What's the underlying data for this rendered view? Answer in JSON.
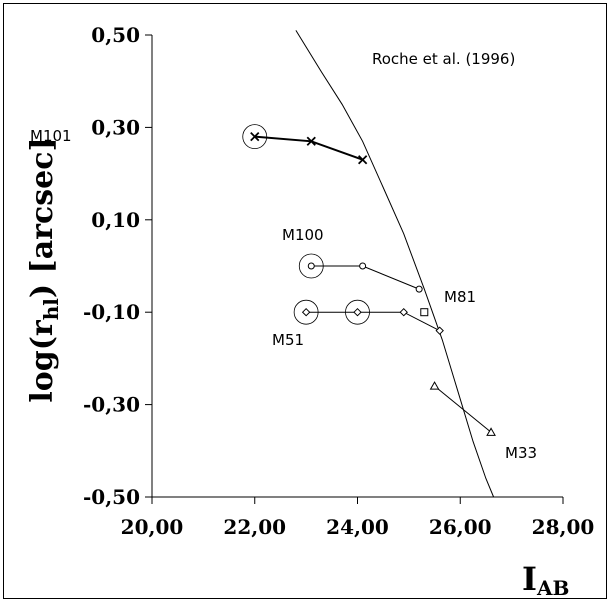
{
  "chart_data": {
    "type": "scatter",
    "xlabel": "I",
    "xlabel_sub": "AB",
    "ylabel": "log(r",
    "ylabel_sub": "hl",
    "ylabel_tail": ") [arcsec]",
    "xlim": [
      20,
      28
    ],
    "ylim": [
      -0.5,
      0.5
    ],
    "x_ticks": [
      20,
      22,
      24,
      26,
      28
    ],
    "x_tick_labels": [
      "20,00",
      "22,00",
      "24,00",
      "26,00",
      "28,00"
    ],
    "y_ticks": [
      0.5,
      0.3,
      0.1,
      -0.1,
      -0.3,
      -0.5
    ],
    "y_tick_labels": [
      "0,50",
      "0,30",
      "0,10",
      "-0,10",
      "-0,30",
      "-0,50"
    ],
    "grid": false,
    "reference_curve": {
      "label": "Roche et al. (1996)",
      "points": [
        [
          22.8,
          0.51
        ],
        [
          23.3,
          0.42
        ],
        [
          23.7,
          0.35
        ],
        [
          24.1,
          0.27
        ],
        [
          24.5,
          0.17
        ],
        [
          24.9,
          0.07
        ],
        [
          25.3,
          -0.05
        ],
        [
          25.65,
          -0.16
        ],
        [
          25.95,
          -0.27
        ],
        [
          26.25,
          -0.38
        ],
        [
          26.5,
          -0.46
        ],
        [
          26.65,
          -0.5
        ]
      ]
    },
    "series": [
      {
        "name": "M101",
        "marker": "x",
        "line_width": 2,
        "points": [
          [
            22.0,
            0.28
          ],
          [
            23.1,
            0.27
          ],
          [
            24.1,
            0.23
          ]
        ],
        "circled": [
          0
        ]
      },
      {
        "name": "M100",
        "marker": "o",
        "line_width": 1,
        "points": [
          [
            23.1,
            0.0
          ],
          [
            24.1,
            0.0
          ],
          [
            25.2,
            -0.05
          ]
        ],
        "circled": [
          0
        ]
      },
      {
        "name": "M81",
        "marker": "s",
        "line_width": 1,
        "points": [
          [
            25.3,
            -0.1
          ]
        ],
        "circled": []
      },
      {
        "name": "M51",
        "marker": "d",
        "line_width": 1,
        "points": [
          [
            23.0,
            -0.1
          ],
          [
            24.0,
            -0.1
          ],
          [
            24.9,
            -0.1
          ],
          [
            25.6,
            -0.14
          ]
        ],
        "circled": [
          0,
          1
        ]
      },
      {
        "name": "M33",
        "marker": "^",
        "line_width": 1,
        "points": [
          [
            25.5,
            -0.26
          ],
          [
            26.6,
            -0.36
          ]
        ],
        "circled": []
      }
    ]
  }
}
